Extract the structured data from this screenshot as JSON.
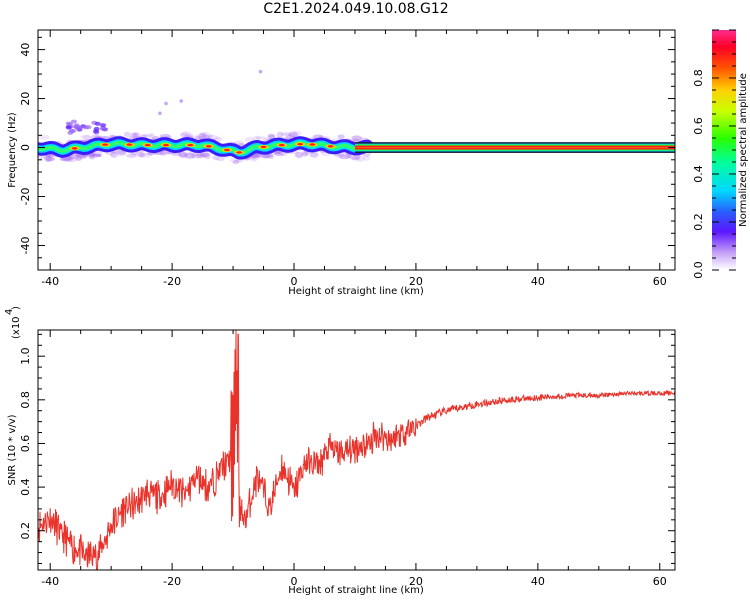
{
  "title": "C2E1.2024.049.10.08.G12",
  "chart_data": [
    {
      "type": "heatmap",
      "xlabel": "Height of straight line (km)",
      "ylabel": "Frequency (Hz)",
      "xlim": [
        -42,
        62.5
      ],
      "ylim": [
        -50,
        48
      ],
      "xticks": [
        "-40",
        "-20",
        "0",
        "20",
        "40",
        "60"
      ],
      "xtick_values": [
        -40,
        -20,
        0,
        20,
        40,
        60
      ],
      "yticks": [
        "40",
        "20",
        "0",
        "-20",
        "-40"
      ],
      "ytick_values": [
        40,
        20,
        0,
        -20,
        -40
      ],
      "colorbar": {
        "label": "Normalized spectral amplitude",
        "range": [
          0,
          1
        ],
        "ticks": [
          "0.0",
          "0.2",
          "0.4",
          "0.6",
          "0.8"
        ],
        "tick_values": [
          0.0,
          0.2,
          0.4,
          0.6,
          0.8
        ]
      },
      "ridge_frequency_hz": [
        {
          "x": -42,
          "y": 0
        },
        {
          "x": -38,
          "y": -1
        },
        {
          "x": -35,
          "y": 0
        },
        {
          "x": -30,
          "y": 1.5
        },
        {
          "x": -25,
          "y": 1
        },
        {
          "x": -20,
          "y": 1
        },
        {
          "x": -15,
          "y": 1
        },
        {
          "x": -12,
          "y": -0.5
        },
        {
          "x": -9,
          "y": -2
        },
        {
          "x": -6,
          "y": 0
        },
        {
          "x": -2,
          "y": 1
        },
        {
          "x": 2,
          "y": 1.5
        },
        {
          "x": 6,
          "y": 0.5
        },
        {
          "x": 10,
          "y": 0
        },
        {
          "x": 62,
          "y": 0
        }
      ]
    },
    {
      "type": "line",
      "xlabel": "Height of straight line (km)",
      "ylabel": "SNR (10 * v/v)",
      "scale_label": "(x10",
      "scale_exponent": "4",
      "xlim": [
        -42,
        62.5
      ],
      "ylim": [
        0.02,
        1.12
      ],
      "xticks": [
        "-40",
        "-20",
        "0",
        "20",
        "40",
        "60"
      ],
      "xtick_values": [
        -40,
        -20,
        0,
        20,
        40,
        60
      ],
      "yticks": [
        "0.2",
        "0.4",
        "0.6",
        "0.8",
        "1.0"
      ],
      "ytick_values": [
        0.2,
        0.4,
        0.6,
        0.8,
        1.0
      ],
      "series": [
        {
          "color": "#e8322a",
          "x": [
            -42,
            -40,
            -38,
            -36,
            -34,
            -32,
            -30,
            -28,
            -26,
            -24,
            -22,
            -20,
            -18,
            -16,
            -14,
            -12,
            -10,
            -9.5,
            -9,
            -8,
            -6,
            -4,
            -2,
            0,
            2,
            4,
            6,
            8,
            10,
            12,
            14,
            16,
            18,
            20,
            22,
            25,
            30,
            35,
            40,
            45,
            50,
            55,
            60,
            62.5
          ],
          "y": [
            0.22,
            0.26,
            0.18,
            0.12,
            0.08,
            0.1,
            0.22,
            0.3,
            0.32,
            0.38,
            0.35,
            0.42,
            0.36,
            0.45,
            0.4,
            0.48,
            0.55,
            0.95,
            0.3,
            0.25,
            0.45,
            0.3,
            0.5,
            0.38,
            0.52,
            0.5,
            0.58,
            0.55,
            0.58,
            0.6,
            0.64,
            0.62,
            0.66,
            0.68,
            0.72,
            0.75,
            0.78,
            0.8,
            0.81,
            0.82,
            0.82,
            0.83,
            0.83,
            0.83
          ]
        }
      ]
    }
  ]
}
